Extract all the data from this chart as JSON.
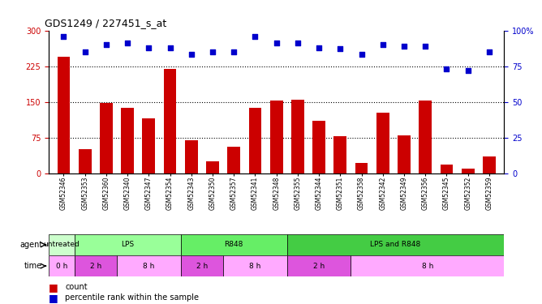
{
  "title": "GDS1249 / 227451_s_at",
  "samples": [
    "GSM52346",
    "GSM52353",
    "GSM52360",
    "GSM52340",
    "GSM52347",
    "GSM52354",
    "GSM52343",
    "GSM52350",
    "GSM52357",
    "GSM52341",
    "GSM52348",
    "GSM52355",
    "GSM52344",
    "GSM52351",
    "GSM52358",
    "GSM52342",
    "GSM52349",
    "GSM52356",
    "GSM52345",
    "GSM52352",
    "GSM52359"
  ],
  "counts": [
    245,
    50,
    148,
    138,
    115,
    220,
    70,
    25,
    55,
    138,
    153,
    155,
    110,
    78,
    22,
    128,
    80,
    153,
    18,
    10,
    35
  ],
  "percentiles": [
    96,
    85,
    90,
    91,
    88,
    88,
    83,
    85,
    85,
    96,
    91,
    91,
    88,
    87,
    83,
    90,
    89,
    89,
    73,
    72,
    85
  ],
  "bar_color": "#cc0000",
  "dot_color": "#0000cc",
  "left_ylim": [
    0,
    300
  ],
  "right_ylim": [
    0,
    100
  ],
  "left_yticks": [
    0,
    75,
    150,
    225,
    300
  ],
  "right_yticks": [
    0,
    25,
    50,
    75,
    100
  ],
  "right_yticklabels": [
    "0",
    "25",
    "50",
    "75",
    "100%"
  ],
  "hlines": [
    75,
    150,
    225
  ],
  "agent_spans": [
    {
      "label": "untreated",
      "start": 0,
      "end": 1,
      "color": "#ccffcc"
    },
    {
      "label": "LPS",
      "start": 1,
      "end": 6,
      "color": "#99ff99"
    },
    {
      "label": "R848",
      "start": 6,
      "end": 11,
      "color": "#66ee66"
    },
    {
      "label": "LPS and R848",
      "start": 11,
      "end": 21,
      "color": "#44cc44"
    }
  ],
  "time_spans": [
    {
      "label": "0 h",
      "start": 0,
      "end": 1,
      "color": "#ffaaff"
    },
    {
      "label": "2 h",
      "start": 1,
      "end": 3,
      "color": "#dd55dd"
    },
    {
      "label": "8 h",
      "start": 3,
      "end": 6,
      "color": "#ffaaff"
    },
    {
      "label": "2 h",
      "start": 6,
      "end": 8,
      "color": "#dd55dd"
    },
    {
      "label": "8 h",
      "start": 8,
      "end": 11,
      "color": "#ffaaff"
    },
    {
      "label": "2 h",
      "start": 11,
      "end": 14,
      "color": "#dd55dd"
    },
    {
      "label": "8 h",
      "start": 14,
      "end": 21,
      "color": "#ffaaff"
    }
  ]
}
